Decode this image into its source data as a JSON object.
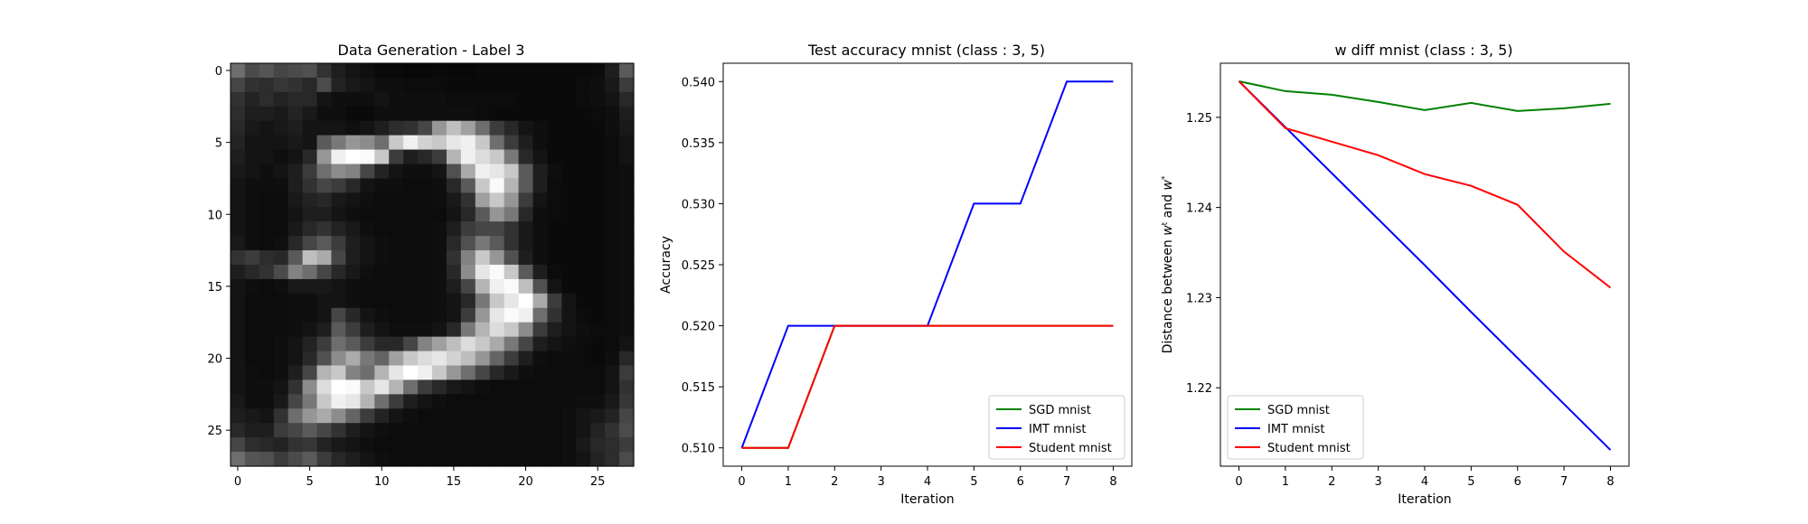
{
  "chart_data": [
    {
      "type": "heatmap",
      "title": "Data Generation - Label 3",
      "xlabel": "",
      "ylabel": "",
      "xticks": [
        "0",
        "5",
        "10",
        "15",
        "20",
        "25"
      ],
      "yticks": [
        "0",
        "5",
        "10",
        "15",
        "20",
        "25"
      ],
      "grid": false,
      "colormap": "gray",
      "description_values": "28x28 grayscale intensities (0-255)",
      "pixels": [
        [
          110,
          75,
          85,
          70,
          75,
          80,
          50,
          30,
          20,
          15,
          10,
          10,
          8,
          8,
          10,
          8,
          8,
          10,
          10,
          10,
          10,
          10,
          10,
          10,
          10,
          12,
          30,
          90
        ],
        [
          70,
          50,
          45,
          55,
          50,
          40,
          75,
          35,
          25,
          20,
          15,
          15,
          12,
          12,
          12,
          10,
          10,
          10,
          10,
          10,
          10,
          10,
          10,
          10,
          12,
          15,
          25,
          60
        ],
        [
          50,
          35,
          45,
          35,
          40,
          40,
          20,
          15,
          15,
          15,
          20,
          15,
          15,
          15,
          15,
          12,
          12,
          12,
          12,
          12,
          10,
          10,
          10,
          10,
          12,
          15,
          20,
          40
        ],
        [
          45,
          30,
          30,
          25,
          35,
          25,
          15,
          15,
          10,
          10,
          15,
          15,
          15,
          15,
          15,
          15,
          15,
          12,
          10,
          10,
          10,
          10,
          10,
          10,
          10,
          12,
          15,
          30
        ],
        [
          40,
          25,
          20,
          25,
          30,
          20,
          20,
          20,
          15,
          20,
          30,
          45,
          50,
          70,
          150,
          190,
          160,
          110,
          60,
          40,
          20,
          15,
          10,
          10,
          10,
          10,
          15,
          25
        ],
        [
          35,
          20,
          20,
          20,
          25,
          20,
          90,
          120,
          150,
          140,
          110,
          200,
          240,
          210,
          200,
          230,
          240,
          200,
          110,
          60,
          30,
          15,
          10,
          10,
          10,
          10,
          12,
          20
        ],
        [
          30,
          20,
          20,
          15,
          20,
          40,
          150,
          240,
          255,
          250,
          200,
          60,
          30,
          40,
          60,
          180,
          240,
          220,
          200,
          120,
          40,
          20,
          10,
          10,
          10,
          10,
          12,
          20
        ],
        [
          25,
          20,
          15,
          20,
          30,
          60,
          110,
          140,
          130,
          70,
          35,
          20,
          15,
          15,
          20,
          80,
          170,
          240,
          230,
          200,
          90,
          30,
          15,
          10,
          10,
          10,
          12,
          15
        ],
        [
          20,
          15,
          15,
          15,
          30,
          50,
          70,
          60,
          40,
          20,
          15,
          15,
          12,
          12,
          15,
          40,
          90,
          200,
          250,
          180,
          90,
          30,
          12,
          10,
          10,
          10,
          12,
          15
        ],
        [
          20,
          15,
          12,
          12,
          25,
          35,
          40,
          25,
          20,
          15,
          12,
          12,
          12,
          12,
          15,
          25,
          50,
          160,
          200,
          150,
          60,
          20,
          12,
          10,
          10,
          10,
          12,
          15
        ],
        [
          20,
          15,
          12,
          12,
          20,
          30,
          30,
          20,
          15,
          12,
          12,
          12,
          12,
          12,
          12,
          20,
          40,
          90,
          150,
          120,
          40,
          15,
          12,
          10,
          10,
          10,
          12,
          15
        ],
        [
          20,
          15,
          12,
          12,
          25,
          40,
          50,
          35,
          25,
          15,
          12,
          12,
          12,
          12,
          15,
          30,
          60,
          70,
          70,
          50,
          25,
          15,
          10,
          10,
          10,
          10,
          12,
          15
        ],
        [
          25,
          15,
          12,
          15,
          40,
          70,
          90,
          60,
          30,
          20,
          15,
          12,
          12,
          12,
          15,
          40,
          80,
          120,
          90,
          50,
          25,
          15,
          10,
          10,
          10,
          10,
          12,
          15
        ],
        [
          50,
          60,
          45,
          40,
          90,
          190,
          170,
          70,
          30,
          20,
          15,
          12,
          12,
          12,
          15,
          50,
          130,
          200,
          150,
          80,
          30,
          15,
          10,
          10,
          10,
          10,
          12,
          15
        ],
        [
          30,
          40,
          50,
          75,
          130,
          110,
          70,
          40,
          25,
          15,
          12,
          12,
          12,
          12,
          15,
          40,
          140,
          230,
          250,
          200,
          90,
          30,
          12,
          10,
          10,
          10,
          12,
          15
        ],
        [
          20,
          15,
          12,
          15,
          25,
          25,
          25,
          20,
          15,
          12,
          12,
          12,
          12,
          12,
          15,
          30,
          70,
          180,
          240,
          250,
          190,
          80,
          20,
          10,
          10,
          10,
          12,
          15
        ],
        [
          20,
          12,
          12,
          12,
          15,
          15,
          20,
          20,
          15,
          12,
          12,
          12,
          12,
          12,
          15,
          20,
          40,
          120,
          200,
          230,
          255,
          170,
          60,
          20,
          10,
          10,
          12,
          15
        ],
        [
          20,
          12,
          12,
          12,
          15,
          15,
          20,
          70,
          40,
          20,
          15,
          12,
          12,
          12,
          15,
          20,
          60,
          150,
          230,
          250,
          240,
          110,
          50,
          20,
          12,
          10,
          12,
          15
        ],
        [
          20,
          12,
          12,
          12,
          15,
          20,
          30,
          90,
          60,
          30,
          20,
          15,
          15,
          15,
          20,
          40,
          120,
          180,
          220,
          200,
          140,
          60,
          30,
          20,
          15,
          12,
          12,
          15
        ],
        [
          20,
          12,
          12,
          15,
          20,
          35,
          60,
          110,
          90,
          60,
          40,
          40,
          70,
          130,
          160,
          190,
          220,
          200,
          170,
          120,
          70,
          30,
          20,
          15,
          12,
          10,
          12,
          20
        ],
        [
          20,
          12,
          12,
          15,
          20,
          40,
          80,
          140,
          170,
          120,
          100,
          160,
          200,
          220,
          230,
          210,
          190,
          150,
          100,
          60,
          30,
          15,
          12,
          12,
          12,
          10,
          15,
          40
        ],
        [
          20,
          15,
          12,
          15,
          30,
          70,
          180,
          200,
          130,
          110,
          180,
          230,
          255,
          240,
          200,
          150,
          110,
          70,
          40,
          25,
          15,
          12,
          12,
          12,
          12,
          12,
          20,
          60
        ],
        [
          20,
          15,
          15,
          20,
          50,
          140,
          220,
          255,
          250,
          200,
          230,
          180,
          110,
          60,
          40,
          25,
          20,
          15,
          12,
          12,
          12,
          12,
          12,
          12,
          12,
          12,
          20,
          50
        ],
        [
          25,
          15,
          15,
          25,
          70,
          120,
          200,
          240,
          230,
          180,
          110,
          60,
          30,
          20,
          15,
          12,
          12,
          12,
          12,
          12,
          12,
          12,
          12,
          12,
          15,
          15,
          25,
          55
        ],
        [
          30,
          25,
          20,
          50,
          110,
          150,
          170,
          140,
          100,
          60,
          35,
          20,
          15,
          12,
          12,
          12,
          12,
          12,
          12,
          12,
          12,
          12,
          12,
          15,
          20,
          25,
          35,
          70
        ],
        [
          40,
          30,
          30,
          60,
          70,
          90,
          70,
          50,
          30,
          20,
          15,
          12,
          12,
          12,
          12,
          12,
          12,
          12,
          12,
          12,
          12,
          12,
          12,
          15,
          20,
          35,
          50,
          75
        ],
        [
          70,
          45,
          40,
          35,
          50,
          55,
          35,
          25,
          20,
          15,
          12,
          12,
          12,
          12,
          12,
          12,
          12,
          12,
          12,
          12,
          12,
          12,
          12,
          15,
          25,
          40,
          45,
          60
        ],
        [
          110,
          85,
          80,
          60,
          75,
          90,
          60,
          40,
          30,
          20,
          15,
          12,
          12,
          12,
          12,
          12,
          12,
          12,
          12,
          12,
          12,
          12,
          12,
          15,
          20,
          35,
          45,
          75
        ]
      ]
    },
    {
      "type": "line",
      "title": "Test accuracy mnist (class : 3, 5)",
      "xlabel": "Iteration",
      "ylabel": "Accuracy",
      "x": [
        0,
        1,
        2,
        3,
        4,
        5,
        6,
        7,
        8
      ],
      "xlim": [
        -0.4,
        8.4
      ],
      "ylim": [
        0.5085,
        0.5415
      ],
      "xticks": [
        "0",
        "1",
        "2",
        "3",
        "4",
        "5",
        "6",
        "7",
        "8"
      ],
      "yticks": [
        "0.510",
        "0.515",
        "0.520",
        "0.525",
        "0.530",
        "0.535",
        "0.540"
      ],
      "grid": false,
      "legend_position": "lower-right",
      "series": [
        {
          "name": "SGD mnist",
          "color": "#008000",
          "values": [
            0.51,
            0.51,
            0.52,
            0.52,
            0.52,
            0.52,
            0.52,
            0.52,
            0.52
          ]
        },
        {
          "name": "IMT mnist",
          "color": "#0000ff",
          "values": [
            0.51,
            0.52,
            0.52,
            0.52,
            0.52,
            0.53,
            0.53,
            0.54,
            0.54
          ]
        },
        {
          "name": "Student mnist",
          "color": "#ff0000",
          "values": [
            0.51,
            0.51,
            0.52,
            0.52,
            0.52,
            0.52,
            0.52,
            0.52,
            0.52
          ]
        }
      ]
    },
    {
      "type": "line",
      "title": "w diff mnist (class : 3, 5)",
      "xlabel": "Iteration",
      "ylabel": "Distance between w^t and w^*",
      "x": [
        0,
        1,
        2,
        3,
        4,
        5,
        6,
        7,
        8
      ],
      "xlim": [
        -0.4,
        8.4
      ],
      "ylim": [
        1.2113,
        1.256
      ],
      "xticks": [
        "0",
        "1",
        "2",
        "3",
        "4",
        "5",
        "6",
        "7",
        "8"
      ],
      "yticks": [
        "1.22",
        "1.23",
        "1.24",
        "1.25"
      ],
      "grid": false,
      "legend_position": "lower-left",
      "series": [
        {
          "name": "SGD mnist",
          "color": "#008000",
          "values": [
            1.254,
            1.2529,
            1.2525,
            1.2517,
            1.2508,
            1.2516,
            1.2507,
            1.251,
            1.2515
          ]
        },
        {
          "name": "IMT mnist",
          "color": "#0000ff",
          "values": [
            1.254,
            1.2489,
            1.2438,
            1.2387,
            1.2336,
            1.2284,
            1.2233,
            1.2182,
            1.2131
          ]
        },
        {
          "name": "Student mnist",
          "color": "#ff0000",
          "values": [
            1.254,
            1.2488,
            1.2473,
            1.2458,
            1.2437,
            1.2424,
            1.2403,
            1.2351,
            1.2311
          ]
        }
      ]
    }
  ]
}
